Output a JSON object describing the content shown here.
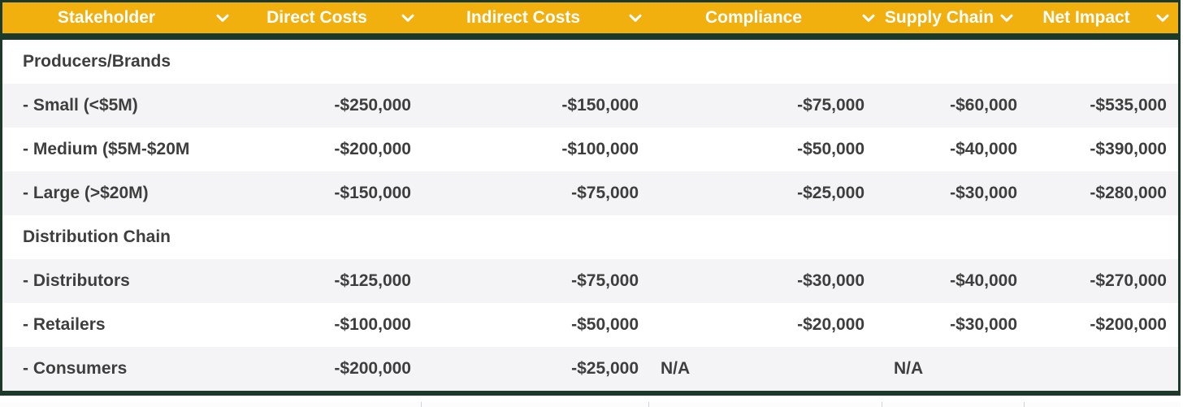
{
  "colors": {
    "header_background": "#F2B00F",
    "border_green": "#1C3A29",
    "body_text": "#3E3E3E",
    "alt_row_background": "#F4F4F6",
    "header_text": "#FFFFFF"
  },
  "icons": {
    "header_dropdown": "chevron-down-icon"
  },
  "table": {
    "columns": [
      {
        "label": "Stakeholder"
      },
      {
        "label": "Direct Costs"
      },
      {
        "label": "Indirect Costs"
      },
      {
        "label": "Compliance"
      },
      {
        "label": "Supply Chain"
      },
      {
        "label": "Net Impact"
      }
    ],
    "rows": [
      {
        "type": "group",
        "label": "Producers/Brands",
        "values": [
          "",
          "",
          "",
          "",
          ""
        ]
      },
      {
        "type": "data",
        "label": "- Small (<$5M)",
        "values": [
          "-$250,000",
          "-$150,000",
          "-$75,000",
          "-$60,000",
          "-$535,000"
        ]
      },
      {
        "type": "data",
        "label": "- Medium ($5M-$20M",
        "values": [
          "-$200,000",
          "-$100,000",
          "-$50,000",
          "-$40,000",
          "-$390,000"
        ]
      },
      {
        "type": "data",
        "label": "- Large (>$20M)",
        "values": [
          "-$150,000",
          "-$75,000",
          "-$25,000",
          "-$30,000",
          "-$280,000"
        ]
      },
      {
        "type": "group",
        "label": "Distribution Chain",
        "values": [
          "",
          "",
          "",
          "",
          ""
        ]
      },
      {
        "type": "data",
        "label": "- Distributors",
        "values": [
          "-$125,000",
          "-$75,000",
          "-$30,000",
          "-$40,000",
          "-$270,000"
        ]
      },
      {
        "type": "data",
        "label": "- Retailers",
        "values": [
          "-$100,000",
          "-$50,000",
          "-$20,000",
          "-$30,000",
          "-$200,000"
        ]
      },
      {
        "type": "data",
        "label": "- Consumers",
        "values": [
          "-$200,000",
          "-$25,000",
          "N/A",
          "N/A",
          ""
        ]
      }
    ]
  }
}
